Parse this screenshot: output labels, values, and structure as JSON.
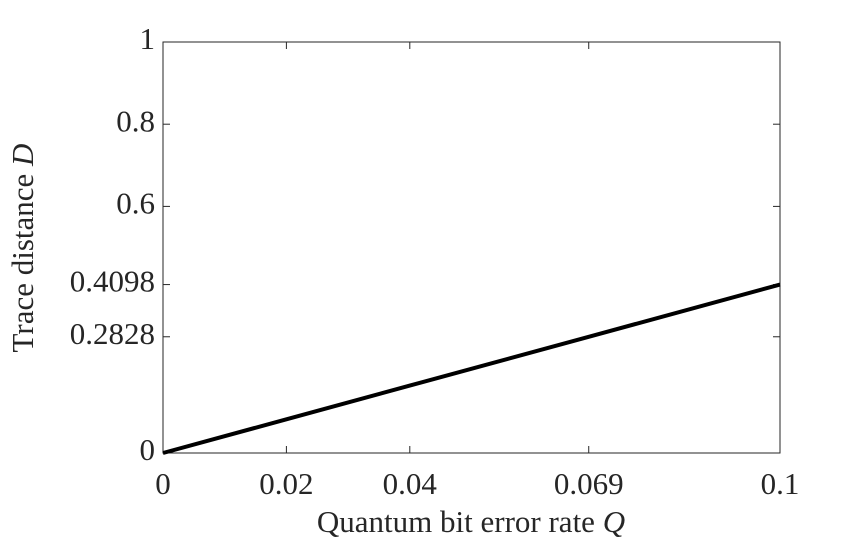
{
  "chart_data": {
    "type": "line",
    "xlabel": {
      "text": "Quantum bit error rate",
      "symbol": "Q"
    },
    "ylabel": {
      "text": "Trace distance",
      "symbol": "D"
    },
    "x": [
      0,
      0.02,
      0.04,
      0.069,
      0.1
    ],
    "series": [
      {
        "color": "#000000",
        "values": [
          0,
          0.082,
          0.164,
          0.2828,
          0.4098
        ]
      }
    ],
    "xlim": [
      0,
      0.1
    ],
    "xticks": [
      0,
      0.02,
      0.04,
      0.069,
      0.1
    ],
    "ylim": [
      0,
      1
    ],
    "yticks": [
      0,
      0.2828,
      0.4098,
      0.6,
      0.8,
      1
    ],
    "grid": false
  }
}
